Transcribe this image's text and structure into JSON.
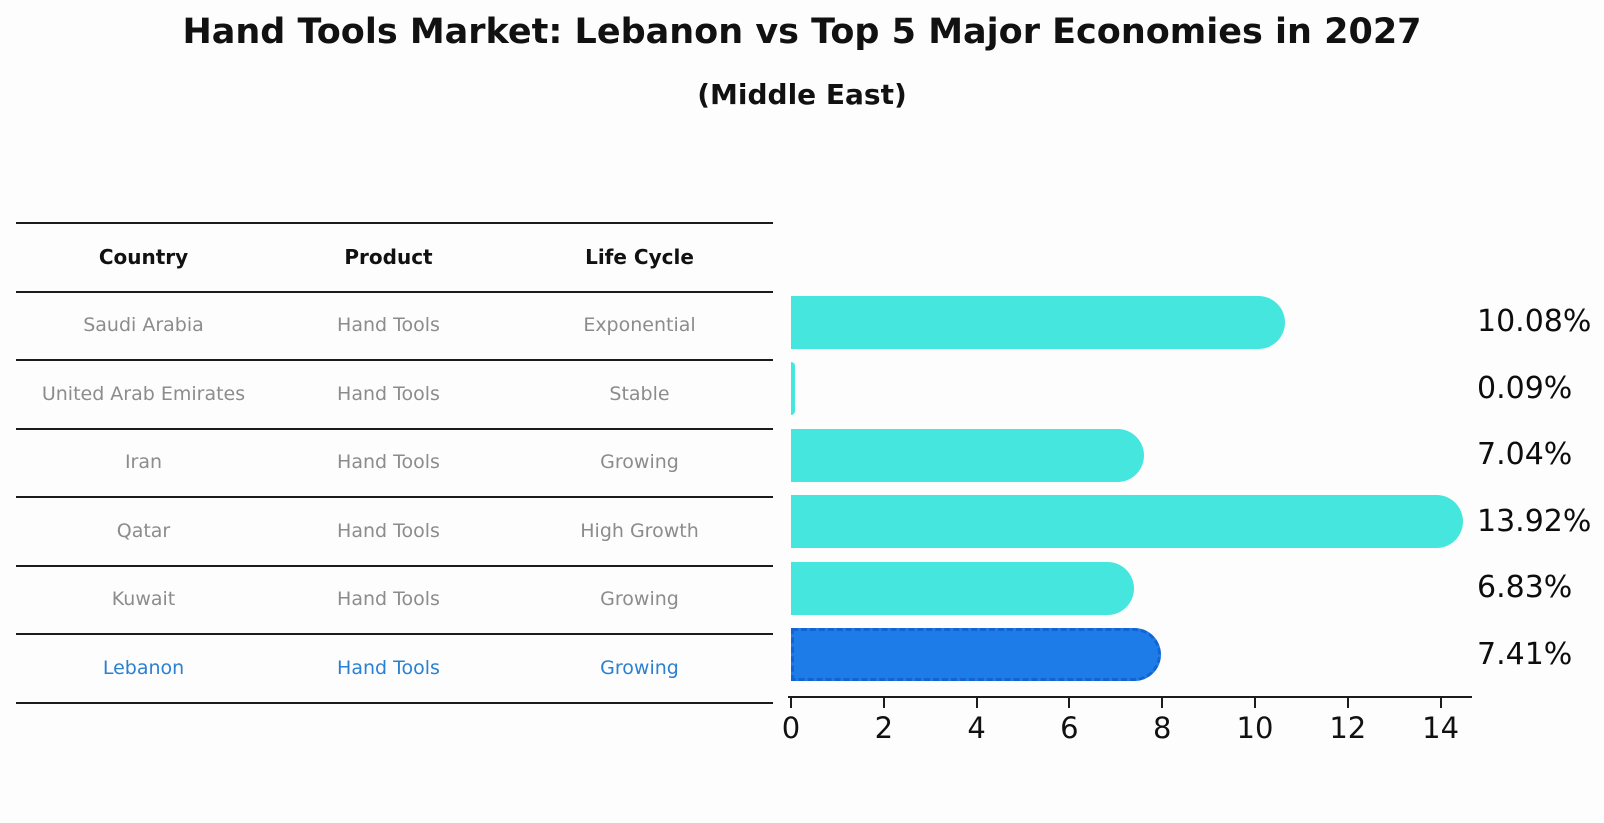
{
  "chart_data": {
    "type": "bar",
    "orientation": "horizontal",
    "title": "Hand Tools Market: Lebanon vs Top 5 Major Economies in 2027",
    "subtitle": "(Middle East)",
    "xlabel": "",
    "ylabel": "",
    "xlim": [
      0,
      14.7
    ],
    "x_ticks": [
      0,
      2,
      4,
      6,
      8,
      10,
      12,
      14
    ],
    "grid": false,
    "legend": "none",
    "categories": [
      "Saudi Arabia",
      "United Arab Emirates",
      "Iran",
      "Qatar",
      "Kuwait",
      "Lebanon"
    ],
    "values": [
      10.08,
      0.09,
      7.04,
      13.92,
      6.83,
      7.41
    ],
    "rows": [
      {
        "country": "Saudi Arabia",
        "product": "Hand Tools",
        "life_cycle": "Exponential",
        "value": 10.08,
        "label": "10.08%",
        "highlight": false
      },
      {
        "country": "United Arab Emirates",
        "product": "Hand Tools",
        "life_cycle": "Stable",
        "value": 0.09,
        "label": "0.09%",
        "highlight": false
      },
      {
        "country": "Iran",
        "product": "Hand Tools",
        "life_cycle": "Growing",
        "value": 7.04,
        "label": "7.04%",
        "highlight": false
      },
      {
        "country": "Qatar",
        "product": "Hand Tools",
        "life_cycle": "High Growth",
        "value": 13.92,
        "label": "13.92%",
        "highlight": false
      },
      {
        "country": "Kuwait",
        "product": "Hand Tools",
        "life_cycle": "Growing",
        "value": 6.83,
        "label": "6.83%",
        "highlight": false
      },
      {
        "country": "Lebanon",
        "product": "Hand Tools",
        "life_cycle": "Growing",
        "value": 7.41,
        "label": "7.41%",
        "highlight": true
      }
    ]
  },
  "table": {
    "headers": {
      "country": "Country",
      "product": "Product",
      "life_cycle": "Life Cycle"
    }
  },
  "colors": {
    "bar_default": "#45e6dd",
    "bar_highlight": "#1d7ce8",
    "highlight_border": "#1463d2",
    "highlight_text": "#2a80d2",
    "table_text": "#8c8c8c",
    "heading_text": "#111111",
    "axis": "#1c1c1c"
  }
}
